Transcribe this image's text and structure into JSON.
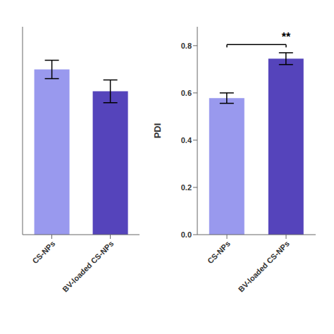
{
  "chart_data": [
    {
      "type": "bar",
      "categories": [
        "CS-NPs",
        "BV-loaded CS-NPs"
      ],
      "values": [
        0.755,
        0.655
      ],
      "errors": [
        0.042,
        0.052
      ],
      "colors": [
        "#9999ee",
        "#5544bb"
      ],
      "ylim": [
        0,
        0.95
      ],
      "tick_labels": "x"
    },
    {
      "type": "bar",
      "categories": [
        "CS-NPs",
        "BV-loaded CS-NPs"
      ],
      "values": [
        0.578,
        0.745
      ],
      "errors": [
        0.022,
        0.025
      ],
      "colors": [
        "#9999ee",
        "#5544bb"
      ],
      "ylim": [
        0.0,
        0.88
      ],
      "yticks": [
        {
          "value": 0,
          "label": "0.0"
        },
        0.2,
        0.4,
        0.6,
        0.8
      ],
      "ylabel": "PDI",
      "annotations": [
        {
          "text": "**",
          "y": 0.805
        }
      ]
    }
  ]
}
